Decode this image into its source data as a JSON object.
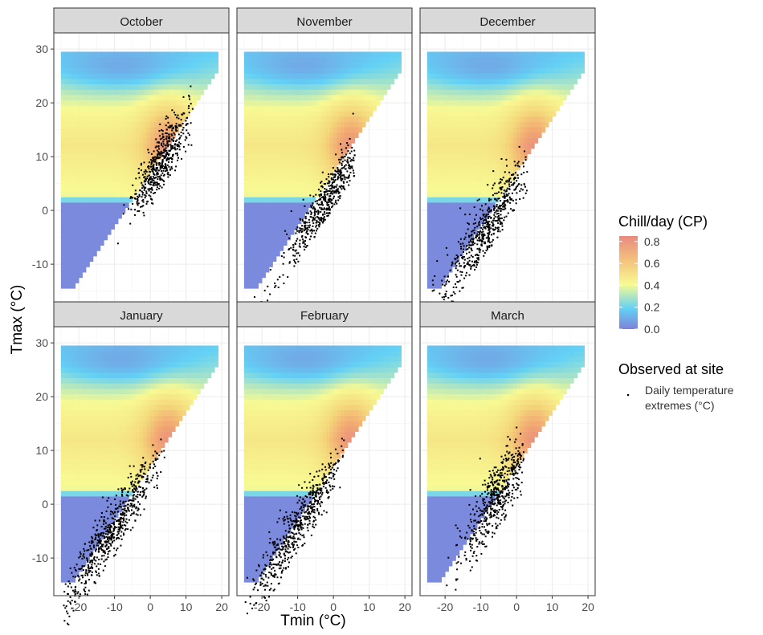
{
  "chart_data": {
    "type": "heatmap",
    "xlabel": "Tmin (°C)",
    "ylabel": "Tmax (°C)",
    "xlim": [
      -27,
      22
    ],
    "ylim": [
      -17,
      33
    ],
    "xticks": [
      -20,
      -10,
      0,
      10,
      20
    ],
    "xtick_labels": [
      "-20",
      "-10",
      "0",
      "10",
      "20"
    ],
    "yticks": [
      -10,
      0,
      10,
      20,
      30
    ],
    "ytick_labels": [
      "-10",
      "0",
      "10",
      "20",
      "30"
    ],
    "grid": true,
    "heatmap_domain": {
      "tmin_range": [
        -25,
        19
      ],
      "tmax_range": [
        -14.5,
        29.5
      ],
      "constraint": "Tmax >= Tmin + 7"
    },
    "fill_legend": {
      "title": "Chill/day (CP)",
      "ticks": [
        0.8,
        0.6,
        0.4,
        0.2,
        0.0
      ],
      "tick_labels": [
        "0.8",
        "0.6",
        "0.4",
        "0.2",
        "0.0"
      ],
      "range": [
        0,
        0.85
      ],
      "colors": [
        "#7b7fd9",
        "#5fd0f5",
        "#f8fa90",
        "#f3c07a",
        "#e8887e"
      ]
    },
    "point_legend": {
      "title": "Observed at site",
      "label_lines": [
        "Daily temperature",
        "extremes (°C)"
      ]
    },
    "panels": [
      {
        "month": "October",
        "points_summary": {
          "tmin_mean": 3,
          "tmin_sd": 4,
          "tmin_range": [
            -13,
            12
          ],
          "tmax_offset_mean": 6,
          "tmax_offset_sd": 2.5,
          "n": 520
        }
      },
      {
        "month": "November",
        "points_summary": {
          "tmin_mean": -2,
          "tmin_sd": 6,
          "tmin_range": [
            -24,
            6
          ],
          "tmax_offset_mean": 4,
          "tmax_offset_sd": 2.3,
          "n": 500
        }
      },
      {
        "month": "December",
        "points_summary": {
          "tmin_mean": -8,
          "tmin_sd": 7,
          "tmin_range": [
            -25,
            3
          ],
          "tmax_offset_mean": 5.5,
          "tmax_offset_sd": 2.8,
          "n": 560
        }
      },
      {
        "month": "January",
        "points_summary": {
          "tmin_mean": -10,
          "tmin_sd": 7,
          "tmin_range": [
            -25,
            4
          ],
          "tmax_offset_mean": 6,
          "tmax_offset_sd": 2.6,
          "n": 640
        }
      },
      {
        "month": "February",
        "points_summary": {
          "tmin_mean": -9,
          "tmin_sd": 7,
          "tmin_range": [
            -25,
            3
          ],
          "tmax_offset_mean": 6,
          "tmax_offset_sd": 2.5,
          "n": 560
        }
      },
      {
        "month": "March",
        "points_summary": {
          "tmin_mean": -5,
          "tmin_sd": 5,
          "tmin_range": [
            -25,
            2
          ],
          "tmax_offset_mean": 7,
          "tmax_offset_sd": 3.3,
          "n": 520
        }
      }
    ]
  }
}
